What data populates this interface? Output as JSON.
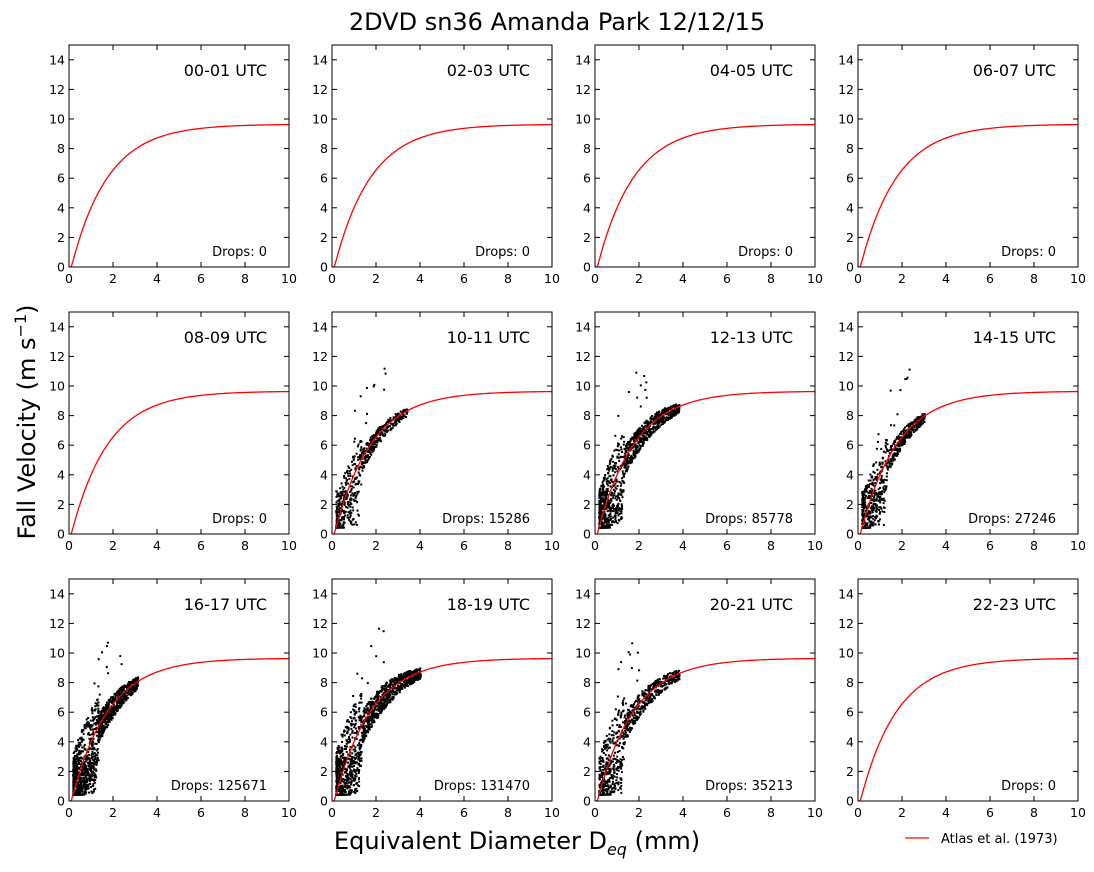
{
  "chart_data": {
    "type": "scatter",
    "title": "2DVD sn36 Amanda Park 12/12/15",
    "xlabel": "Equivalent Diameter D_eq (mm)",
    "ylabel": "Fall Velocity (m s^-1)",
    "xlim": [
      0,
      10
    ],
    "ylim": [
      0,
      15
    ],
    "xticks": [
      0,
      2,
      4,
      6,
      8,
      10
    ],
    "yticks": [
      0,
      2,
      4,
      6,
      8,
      10,
      12,
      14
    ],
    "grid": false,
    "legend": {
      "placement": "bottom-right",
      "entries": [
        {
          "name": "Atlas et al. (1973)",
          "color": "#ff0000"
        }
      ]
    },
    "fit_curve": {
      "name": "Atlas et al. (1973)",
      "formula": "v = 9.65 - 10.3*exp(-0.6*D)",
      "color": "#ff0000"
    },
    "panels": [
      {
        "label": "00-01 UTC",
        "drops_text": "Drops: 0",
        "drops": 0
      },
      {
        "label": "02-03 UTC",
        "drops_text": "Drops: 0",
        "drops": 0
      },
      {
        "label": "04-05 UTC",
        "drops_text": "Drops: 0",
        "drops": 0
      },
      {
        "label": "06-07 UTC",
        "drops_text": "Drops: 0",
        "drops": 0
      },
      {
        "label": "08-09 UTC",
        "drops_text": "Drops: 0",
        "drops": 0
      },
      {
        "label": "10-11 UTC",
        "drops_text": "Drops: 15286",
        "drops": 15286,
        "dmax": 3.4,
        "spread": 1.0
      },
      {
        "label": "12-13 UTC",
        "drops_text": "Drops: 85778",
        "drops": 85778,
        "dmax": 3.8,
        "spread": 1.3
      },
      {
        "label": "14-15 UTC",
        "drops_text": "Drops: 27246",
        "drops": 27246,
        "dmax": 3.0,
        "spread": 1.1
      },
      {
        "label": "16-17 UTC",
        "drops_text": "Drops: 125671",
        "drops": 125671,
        "dmax": 3.1,
        "spread": 1.4
      },
      {
        "label": "18-19 UTC",
        "drops_text": "Drops: 131470",
        "drops": 131470,
        "dmax": 4.0,
        "spread": 1.5
      },
      {
        "label": "20-21 UTC",
        "drops_text": "Drops: 35213",
        "drops": 35213,
        "dmax": 3.8,
        "spread": 1.3
      },
      {
        "label": "22-23 UTC",
        "drops_text": "Drops: 0",
        "drops": 0
      }
    ]
  }
}
